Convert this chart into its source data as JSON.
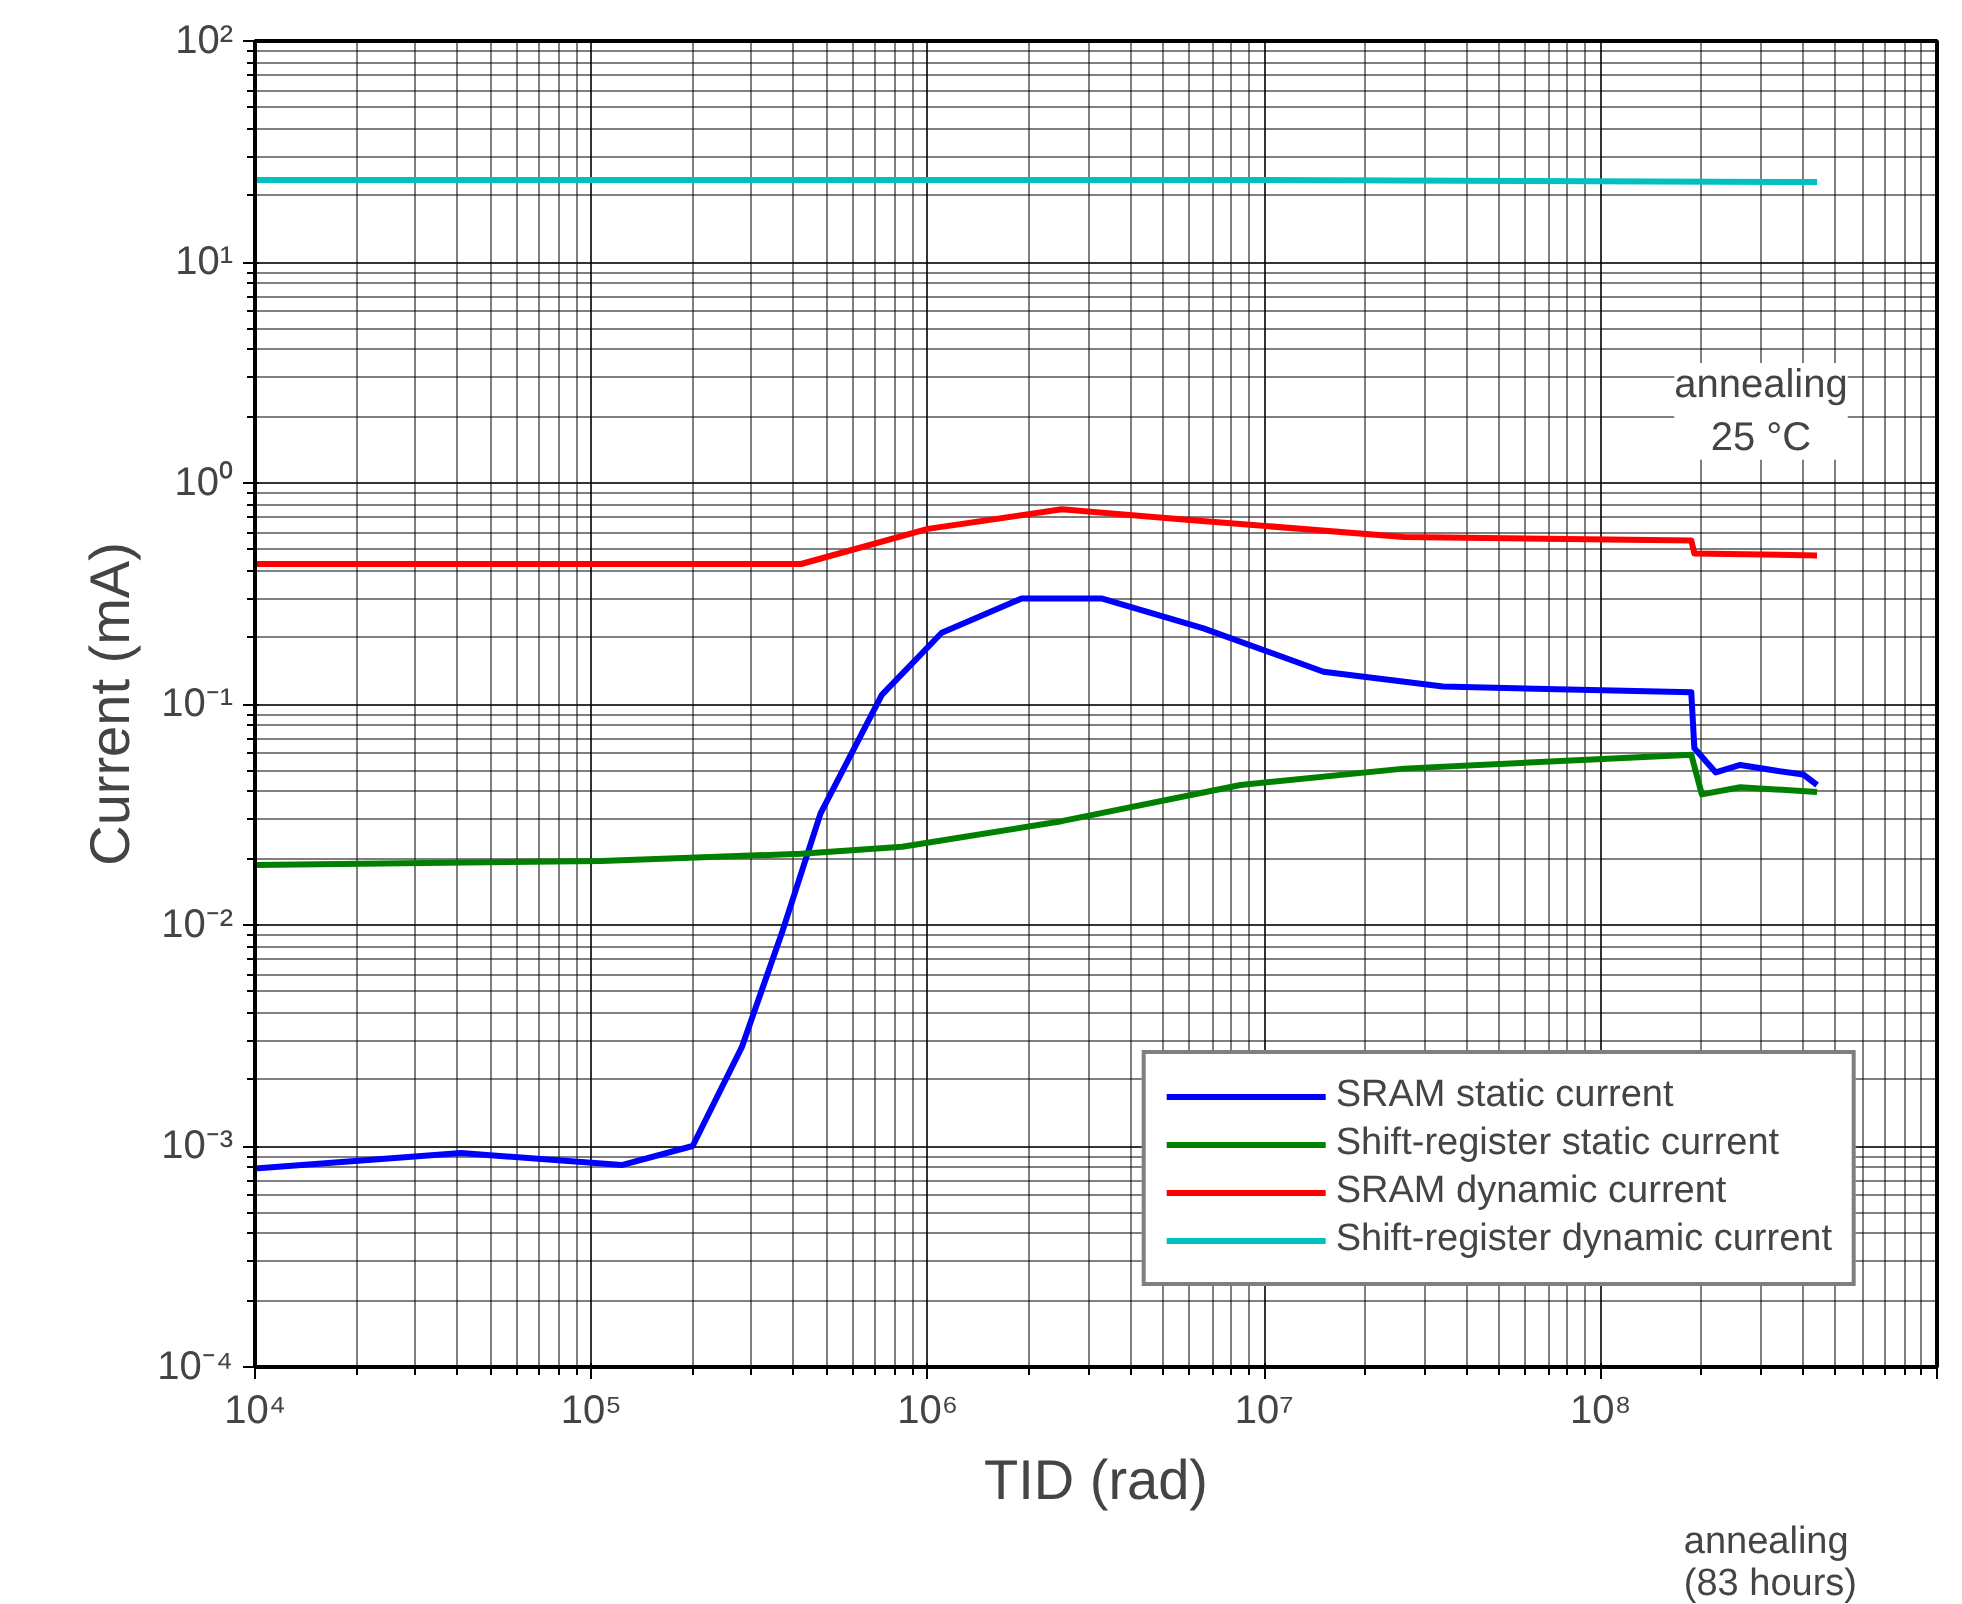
{
  "chart_data": {
    "type": "line",
    "xlabel": "TID (rad)",
    "ylabel": "Current (mA)",
    "log": "xy",
    "grid": true,
    "legend": "bottom right",
    "line_style": "solid",
    "marker": "none",
    "xlim": [
      10000,
      1000000000
    ],
    "ylim": [
      0.0001,
      100
    ],
    "xticks": [
      {
        "value": 10000,
        "label": "10⁴"
      },
      {
        "value": 100000,
        "label": "10⁵"
      },
      {
        "value": 1000000,
        "label": "10⁶"
      },
      {
        "value": 10000000,
        "label": "10⁷"
      },
      {
        "value": 100000000,
        "label": "10⁸"
      },
      {
        "value": 1000000000,
        "label": null
      }
    ],
    "yticks": [
      {
        "value": 0.0001,
        "label": "10⁻⁴"
      },
      {
        "value": 0.001,
        "label": "10⁻³"
      },
      {
        "value": 0.01,
        "label": "10⁻²"
      },
      {
        "value": 0.1,
        "label": "10⁻¹"
      },
      {
        "value": 1,
        "label": "10⁰"
      },
      {
        "value": 10,
        "label": "10¹"
      },
      {
        "value": 100,
        "label": "10²"
      }
    ],
    "series": [
      {
        "name": "SRAM static current",
        "color": "#0000ff",
        "x": [
          10000,
          41000,
          123000,
          200000,
          280000,
          370000,
          480000,
          730000,
          1100000,
          1900000,
          3300000,
          6600000,
          15000000,
          34000000,
          186000000,
          190000000,
          220000000,
          260000000,
          330000000,
          400000000,
          440000000
        ],
        "values": [
          0.00079,
          0.00093,
          0.00082,
          0.001,
          0.0028,
          0.0094,
          0.032,
          0.11,
          0.21,
          0.3,
          0.3,
          0.22,
          0.14,
          0.12,
          0.113,
          0.063,
          0.049,
          0.053,
          0.05,
          0.048,
          0.043
        ]
      },
      {
        "name": "Shift-register static current",
        "color": "#008000",
        "x": [
          10000,
          107000,
          420000,
          840000,
          2500000,
          8500000,
          26000000,
          186000000,
          200000000,
          260000000,
          440000000
        ],
        "values": [
          0.0187,
          0.0195,
          0.021,
          0.0226,
          0.0295,
          0.043,
          0.051,
          0.059,
          0.039,
          0.042,
          0.04
        ]
      },
      {
        "name": "SRAM dynamic current",
        "color": "#ff0000",
        "x": [
          10000,
          420000,
          1000000,
          2500000,
          6000000,
          26000000,
          186000000,
          190000000,
          440000000
        ],
        "values": [
          0.43,
          0.43,
          0.62,
          0.76,
          0.68,
          0.57,
          0.55,
          0.48,
          0.47
        ]
      },
      {
        "name": "Shift-register dynamic current",
        "color": "#00c0c0",
        "x": [
          10000,
          10000000,
          440000000
        ],
        "values": [
          23.5,
          23.5,
          23
        ]
      }
    ],
    "annotations": [
      "annealing\n25 °C",
      "annealing\n(83 hours)"
    ]
  }
}
